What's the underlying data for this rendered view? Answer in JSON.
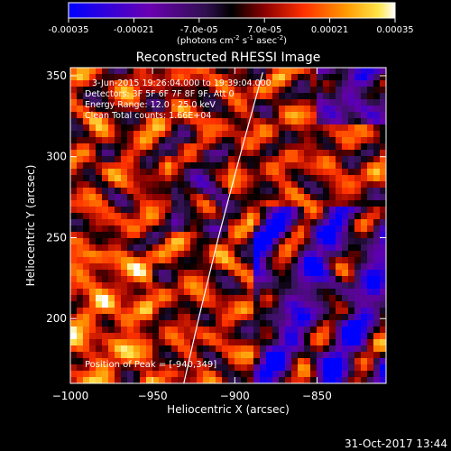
{
  "colorbar": {
    "tick_labels": [
      "-0.00035",
      "-0.00021",
      "-7.0e-05",
      "7.0e-05",
      "0.00021",
      "0.00035"
    ],
    "ticks": [
      -0.00035,
      -0.00021,
      -7e-05,
      7e-05,
      0.00021,
      0.00035
    ],
    "range": [
      -0.00035,
      0.00035
    ],
    "unit_base": "(photons cm",
    "unit_sup1": "-2",
    "unit_mid": " s",
    "unit_sup2": "-1",
    "unit_mid2": " asec",
    "unit_sup3": "-2",
    "unit_end": ")"
  },
  "image": {
    "title": "Reconstructed RHESSI Image",
    "info_lines": [
      "3-Jun-2015 19:26:04.000 to 19:39:04.000",
      "Detectors: 3F 5F 6F 7F 8F 9F, Att 0",
      "Energy Range: 12.0 - 25.0 keV",
      "Clean    Total counts: 1.66E+04"
    ],
    "peak_text": "Position of Peak = [-940,349]",
    "footer_timestamp": "31-Oct-2017 13:44"
  },
  "chart_data": {
    "type": "heatmap",
    "title": "Reconstructed RHESSI Image",
    "xlabel": "Heliocentric X (arcsec)",
    "ylabel": "Heliocentric Y (arcsec)",
    "xlim": [
      -1000,
      -808
    ],
    "ylim": [
      160,
      355
    ],
    "x_ticks": [
      -1000,
      -950,
      -900,
      -850
    ],
    "x_tick_labels": [
      "−1000",
      "−950",
      "−900",
      "−850"
    ],
    "y_ticks": [
      200,
      250,
      300,
      350
    ],
    "y_tick_labels": [
      "200",
      "250",
      "300",
      "350"
    ],
    "peak_position": [
      -940,
      349
    ],
    "limb_points": [
      [
        -931,
        160
      ],
      [
        -922,
        200
      ],
      [
        -910,
        250
      ],
      [
        -897,
        300
      ],
      [
        -883,
        352
      ]
    ],
    "colormap": [
      "#0000ff",
      "#7000b0",
      "#402060",
      "#000000",
      "#8b0000",
      "#ff3000",
      "#ff9000",
      "#ffe000",
      "#ffffff"
    ]
  }
}
